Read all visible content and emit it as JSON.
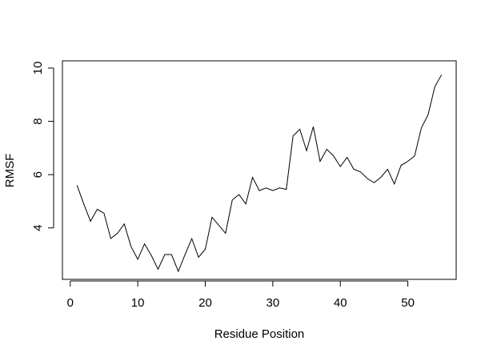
{
  "chart_data": {
    "type": "line",
    "title": "",
    "xlabel": "Residue Position",
    "ylabel": "RMSF",
    "xlim": [
      -1.16,
      57.16
    ],
    "ylim": [
      2.07,
      10.27
    ],
    "x_ticks": [
      0,
      10,
      20,
      30,
      40,
      50
    ],
    "y_ticks": [
      4,
      6,
      8,
      10
    ],
    "grid": false,
    "legend": "none",
    "line_color": "#000000",
    "series": [
      {
        "x": [
          1,
          2,
          3,
          4,
          5,
          6,
          7,
          8,
          9,
          10,
          11,
          12,
          13,
          14,
          15,
          16,
          17,
          18,
          19,
          20,
          21,
          22,
          23,
          24,
          25,
          26,
          27,
          28,
          29,
          30,
          31,
          32,
          33,
          34,
          35,
          36,
          37,
          38,
          39,
          40,
          41,
          42,
          43,
          44,
          45,
          46,
          47,
          48,
          49,
          50,
          51,
          52,
          53,
          54,
          55
        ],
        "values": [
          5.6,
          4.9,
          4.25,
          4.7,
          4.55,
          3.6,
          3.8,
          4.15,
          3.3,
          2.82,
          3.4,
          2.97,
          2.45,
          3.0,
          3.0,
          2.37,
          3.0,
          3.6,
          2.9,
          3.2,
          4.4,
          4.1,
          3.8,
          5.05,
          5.25,
          4.9,
          5.9,
          5.4,
          5.5,
          5.4,
          5.5,
          5.45,
          7.45,
          7.7,
          6.9,
          7.8,
          6.5,
          6.95,
          6.7,
          6.3,
          6.65,
          6.2,
          6.1,
          5.85,
          5.7,
          5.9,
          6.2,
          5.65,
          6.35,
          6.5,
          6.7,
          7.75,
          8.25,
          9.3,
          9.75
        ]
      }
    ]
  }
}
